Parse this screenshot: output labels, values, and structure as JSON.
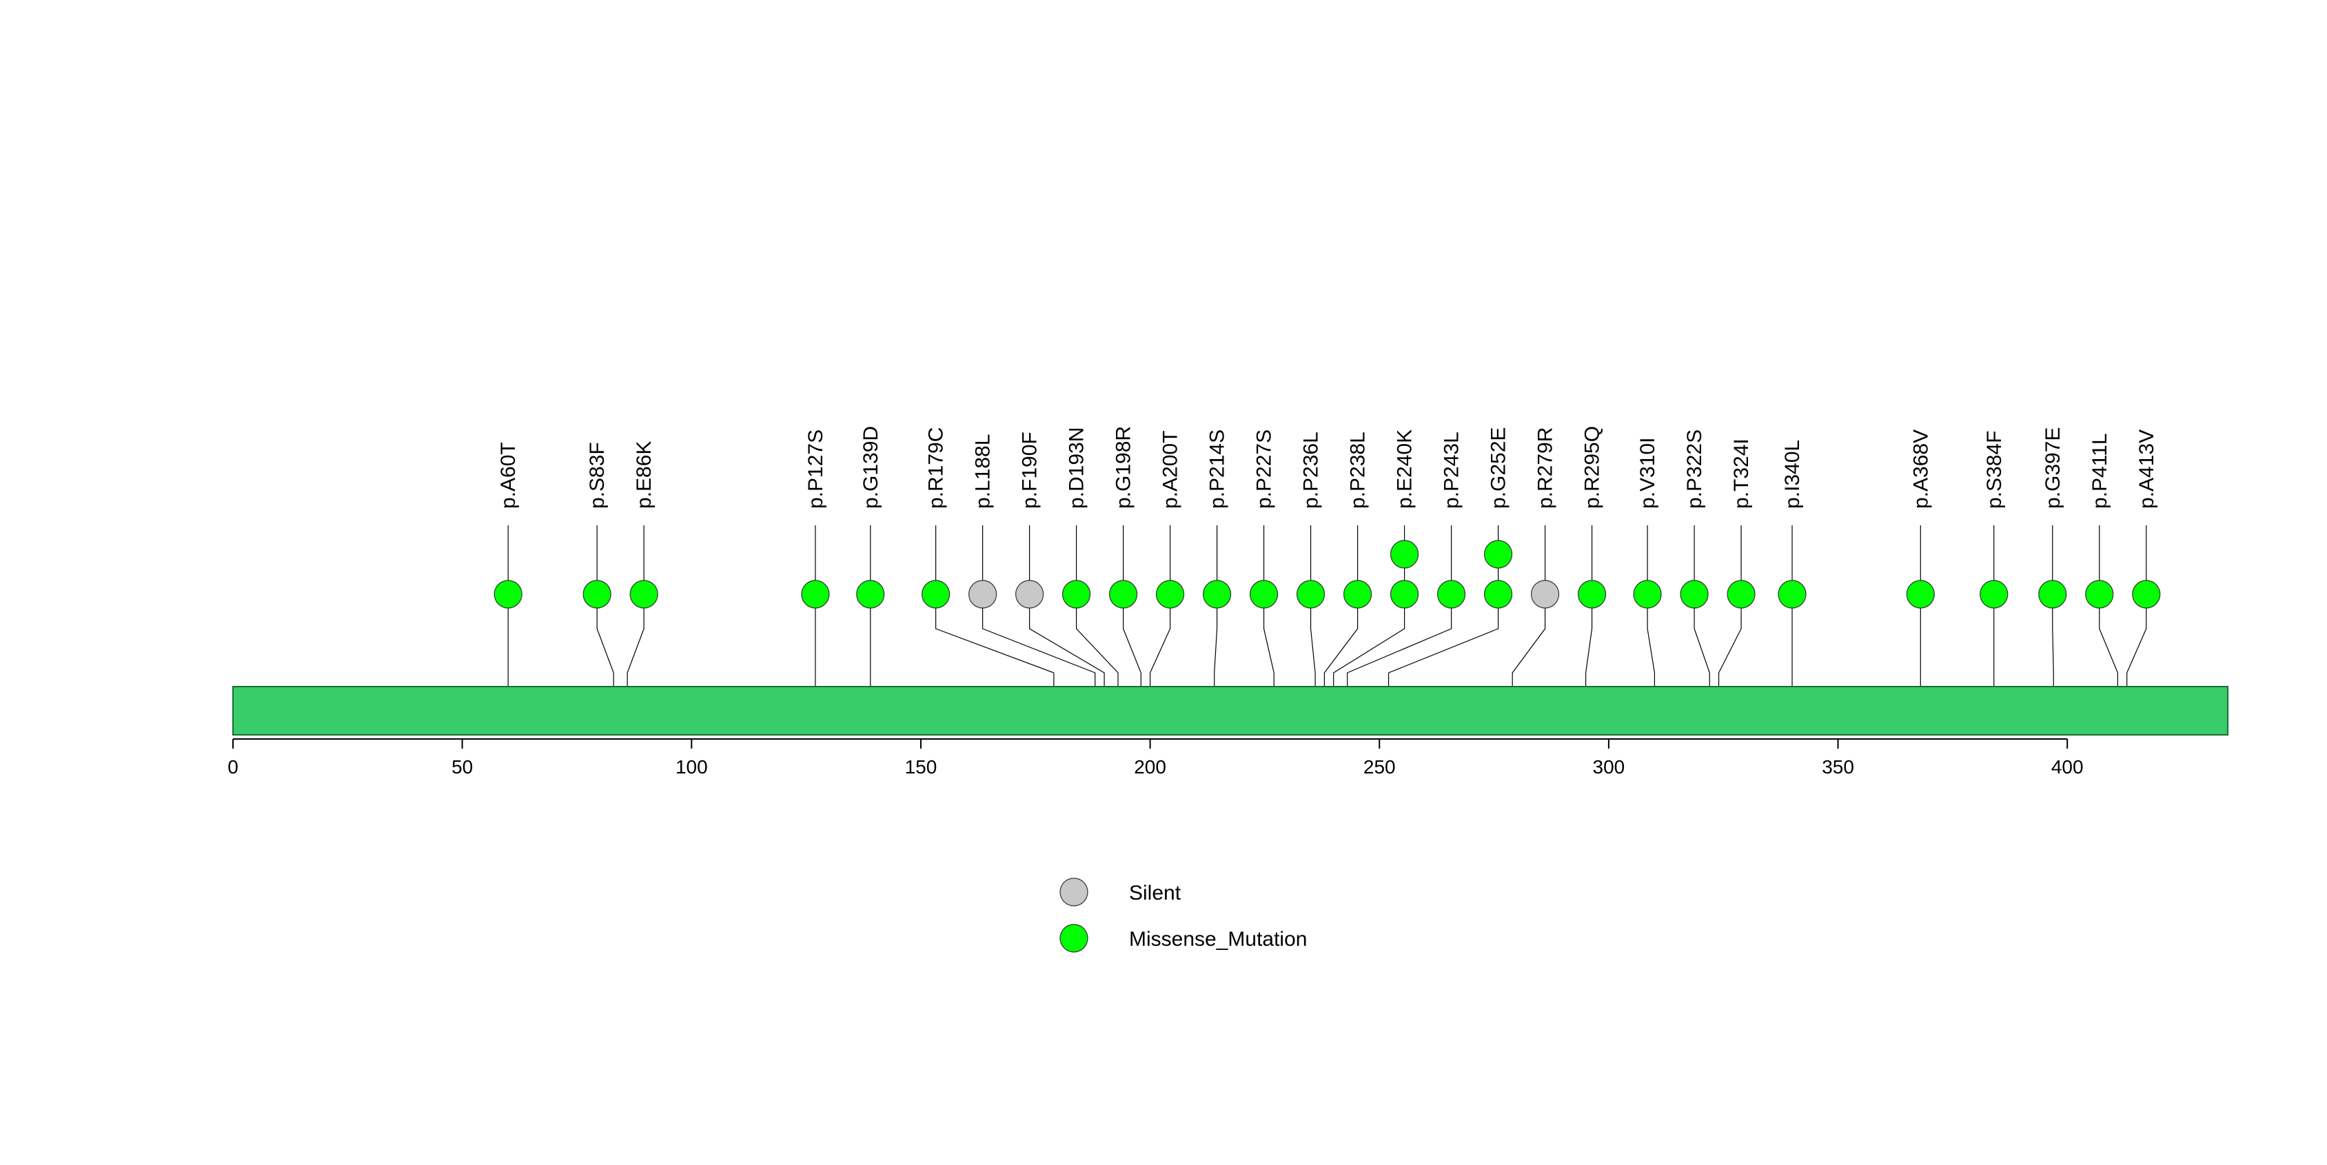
{
  "chart_data": {
    "type": "lollipop",
    "title": "",
    "xlabel": "",
    "ylabel": "",
    "x_range": [
      0,
      435
    ],
    "x_ticks": [
      0,
      50,
      100,
      150,
      200,
      250,
      300,
      350,
      400
    ],
    "x_tick_labels": [
      "0",
      "50",
      "100",
      "150",
      "200",
      "250",
      "300",
      "350",
      "400"
    ],
    "protein_length": 435,
    "protein_color": "#39cd69",
    "mutation_types": [
      {
        "name": "Silent",
        "label": "Silent",
        "color": "#c8c8c8"
      },
      {
        "name": "Missense_Mutation",
        "label": "Missense_Mutation",
        "color": "#00ff00"
      }
    ],
    "mutations": [
      {
        "label": "p.A60T",
        "position": 60,
        "count": 1,
        "type": "Missense_Mutation"
      },
      {
        "label": "p.S83F",
        "position": 83,
        "count": 1,
        "type": "Missense_Mutation"
      },
      {
        "label": "p.E86K",
        "position": 86,
        "count": 1,
        "type": "Missense_Mutation"
      },
      {
        "label": "p.P127S",
        "position": 127,
        "count": 1,
        "type": "Missense_Mutation"
      },
      {
        "label": "p.G139D",
        "position": 139,
        "count": 1,
        "type": "Missense_Mutation"
      },
      {
        "label": "p.R179C",
        "position": 179,
        "count": 1,
        "type": "Missense_Mutation"
      },
      {
        "label": "p.L188L",
        "position": 188,
        "count": 1,
        "type": "Silent"
      },
      {
        "label": "p.F190F",
        "position": 190,
        "count": 1,
        "type": "Silent"
      },
      {
        "label": "p.D193N",
        "position": 193,
        "count": 1,
        "type": "Missense_Mutation"
      },
      {
        "label": "p.G198R",
        "position": 198,
        "count": 1,
        "type": "Missense_Mutation"
      },
      {
        "label": "p.A200T",
        "position": 200,
        "count": 1,
        "type": "Missense_Mutation"
      },
      {
        "label": "p.P214S",
        "position": 214,
        "count": 1,
        "type": "Missense_Mutation"
      },
      {
        "label": "p.P227S",
        "position": 227,
        "count": 1,
        "type": "Missense_Mutation"
      },
      {
        "label": "p.P236L",
        "position": 236,
        "count": 1,
        "type": "Missense_Mutation"
      },
      {
        "label": "p.P238L",
        "position": 238,
        "count": 1,
        "type": "Missense_Mutation"
      },
      {
        "label": "p.E240K",
        "position": 240,
        "count": 2,
        "type": "Missense_Mutation"
      },
      {
        "label": "p.P243L",
        "position": 243,
        "count": 1,
        "type": "Missense_Mutation"
      },
      {
        "label": "p.G252E",
        "position": 252,
        "count": 2,
        "type": "Missense_Mutation"
      },
      {
        "label": "p.R279R",
        "position": 279,
        "count": 1,
        "type": "Silent"
      },
      {
        "label": "p.R295Q",
        "position": 295,
        "count": 1,
        "type": "Missense_Mutation"
      },
      {
        "label": "p.V310I",
        "position": 310,
        "count": 1,
        "type": "Missense_Mutation"
      },
      {
        "label": "p.P322S",
        "position": 322,
        "count": 1,
        "type": "Missense_Mutation"
      },
      {
        "label": "p.T324I",
        "position": 324,
        "count": 1,
        "type": "Missense_Mutation"
      },
      {
        "label": "p.I340L",
        "position": 340,
        "count": 1,
        "type": "Missense_Mutation"
      },
      {
        "label": "p.A368V",
        "position": 368,
        "count": 1,
        "type": "Missense_Mutation"
      },
      {
        "label": "p.S384F",
        "position": 384,
        "count": 1,
        "type": "Missense_Mutation"
      },
      {
        "label": "p.G397E",
        "position": 397,
        "count": 1,
        "type": "Missense_Mutation"
      },
      {
        "label": "p.P411L",
        "position": 411,
        "count": 1,
        "type": "Missense_Mutation"
      },
      {
        "label": "p.A413V",
        "position": 413,
        "count": 1,
        "type": "Missense_Mutation"
      }
    ],
    "legend": {
      "placement": "bottom-center",
      "entries": [
        "Silent",
        "Missense_Mutation"
      ]
    }
  }
}
